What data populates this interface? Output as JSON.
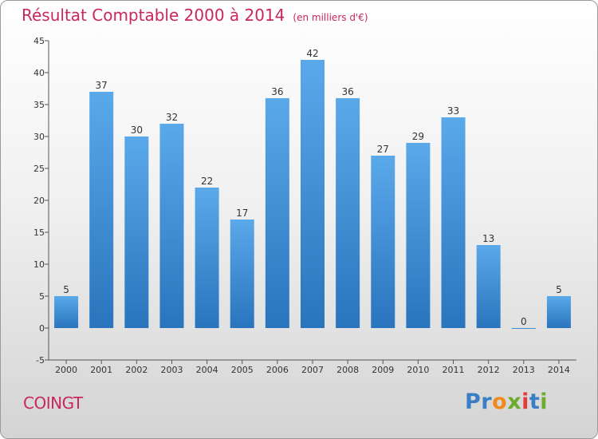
{
  "chart_data": {
    "type": "bar",
    "title": "Résultat Comptable 2000 à 2014",
    "subtitle": "(en milliers d'€)",
    "categories": [
      "2000",
      "2001",
      "2002",
      "2003",
      "2004",
      "2005",
      "2006",
      "2007",
      "2008",
      "2009",
      "2010",
      "2011",
      "2012",
      "2013",
      "2014"
    ],
    "values": [
      5,
      37,
      30,
      32,
      22,
      17,
      36,
      42,
      36,
      27,
      29,
      33,
      13,
      0,
      5
    ],
    "yticks": [
      -5,
      0,
      5,
      10,
      15,
      20,
      25,
      30,
      35,
      40,
      45
    ],
    "ylim": [
      -5,
      45
    ],
    "xlabel": "",
    "ylabel": "",
    "grid": false,
    "bar_color": "#3a8fd6"
  },
  "footer": {
    "commune": "COINGT",
    "logo_letters": [
      {
        "char": "P",
        "color": "#3a7fc6"
      },
      {
        "char": "r",
        "color": "#3a7fc6"
      },
      {
        "char": "o",
        "color": "#f08a1c"
      },
      {
        "char": "x",
        "color": "#6cab2e"
      },
      {
        "char": "i",
        "color": "#e33b3b"
      },
      {
        "char": "t",
        "color": "#3a7fc6"
      },
      {
        "char": "i",
        "color": "#6cab2e"
      }
    ]
  }
}
